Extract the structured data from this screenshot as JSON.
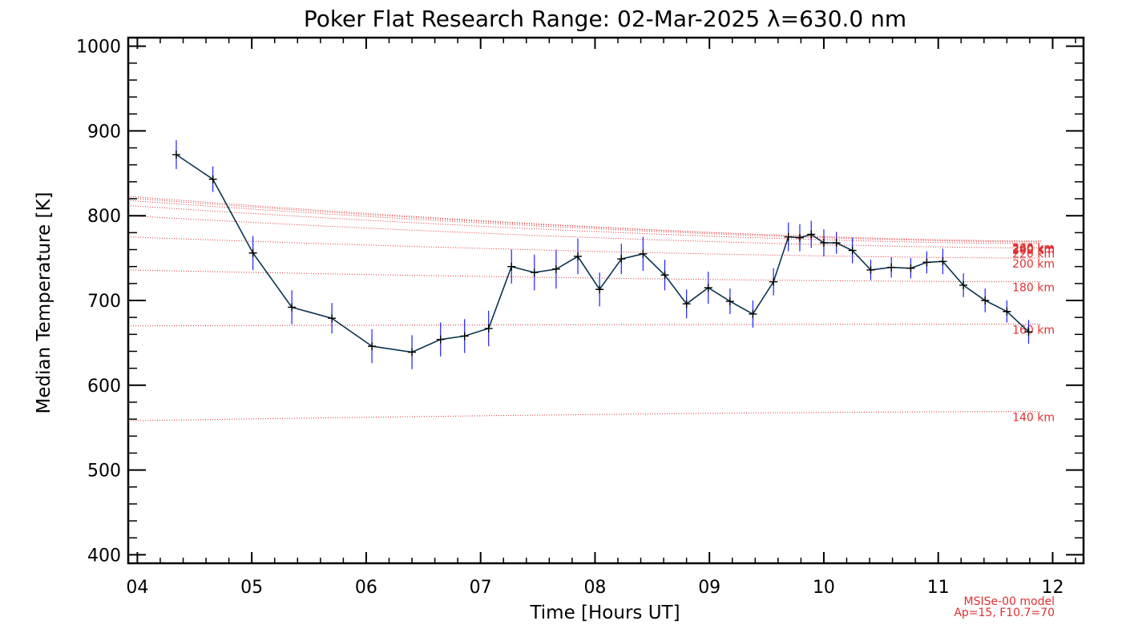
{
  "chart_data": {
    "type": "line",
    "title": "Poker Flat Research Range: 02-Mar-2025 λ=630.0 nm",
    "xlabel": "Time [Hours UT]",
    "ylabel": "Median Temperature [K]",
    "xlim": [
      3.92,
      12.27
    ],
    "ylim": [
      390,
      1010
    ],
    "xticks": [
      4,
      5,
      6,
      7,
      8,
      9,
      10,
      11,
      12
    ],
    "xtick_labels": [
      "04",
      "05",
      "06",
      "07",
      "08",
      "09",
      "10",
      "11",
      "12"
    ],
    "yticks": [
      400,
      500,
      600,
      700,
      800,
      900,
      1000
    ],
    "ytick_labels": [
      "400",
      "500",
      "600",
      "700",
      "800",
      "900",
      "1000"
    ],
    "measured": {
      "name": "Median temperature",
      "color": "#0a3550",
      "errorbar_color": "#2020ff",
      "points": [
        {
          "x": 4.34,
          "y": 872,
          "err": 17
        },
        {
          "x": 4.66,
          "y": 843,
          "err": 15
        },
        {
          "x": 5.01,
          "y": 756,
          "err": 20
        },
        {
          "x": 5.35,
          "y": 692,
          "err": 20
        },
        {
          "x": 5.7,
          "y": 679,
          "err": 18
        },
        {
          "x": 6.05,
          "y": 646,
          "err": 20
        },
        {
          "x": 6.4,
          "y": 639,
          "err": 20
        },
        {
          "x": 6.65,
          "y": 654,
          "err": 20
        },
        {
          "x": 6.86,
          "y": 658,
          "err": 20
        },
        {
          "x": 7.07,
          "y": 667,
          "err": 21
        },
        {
          "x": 7.27,
          "y": 740,
          "err": 20
        },
        {
          "x": 7.47,
          "y": 733,
          "err": 21
        },
        {
          "x": 7.66,
          "y": 737,
          "err": 23
        },
        {
          "x": 7.85,
          "y": 752,
          "err": 21
        },
        {
          "x": 8.04,
          "y": 713,
          "err": 20
        },
        {
          "x": 8.23,
          "y": 749,
          "err": 18
        },
        {
          "x": 8.42,
          "y": 755,
          "err": 20
        },
        {
          "x": 8.61,
          "y": 730,
          "err": 18
        },
        {
          "x": 8.8,
          "y": 696,
          "err": 17
        },
        {
          "x": 8.99,
          "y": 715,
          "err": 19
        },
        {
          "x": 9.18,
          "y": 699,
          "err": 15
        },
        {
          "x": 9.38,
          "y": 684,
          "err": 16
        },
        {
          "x": 9.56,
          "y": 722,
          "err": 16
        },
        {
          "x": 9.69,
          "y": 775,
          "err": 17
        },
        {
          "x": 9.79,
          "y": 774,
          "err": 16
        },
        {
          "x": 9.89,
          "y": 778,
          "err": 16
        },
        {
          "x": 10.0,
          "y": 768,
          "err": 16
        },
        {
          "x": 10.11,
          "y": 768,
          "err": 13
        },
        {
          "x": 10.25,
          "y": 759,
          "err": 15
        },
        {
          "x": 10.41,
          "y": 736,
          "err": 12
        },
        {
          "x": 10.59,
          "y": 739,
          "err": 12
        },
        {
          "x": 10.76,
          "y": 738,
          "err": 12
        },
        {
          "x": 10.9,
          "y": 745,
          "err": 13
        },
        {
          "x": 11.04,
          "y": 746,
          "err": 15
        },
        {
          "x": 11.22,
          "y": 718,
          "err": 14
        },
        {
          "x": 11.41,
          "y": 700,
          "err": 14
        },
        {
          "x": 11.6,
          "y": 687,
          "err": 13
        },
        {
          "x": 11.79,
          "y": 663,
          "err": 14
        }
      ]
    },
    "model": {
      "name": "MSISe-00 model",
      "params": "Ap=15, F10.7=70",
      "color": "#e03030",
      "x_range": [
        3.92,
        11.9
      ],
      "curves": [
        {
          "altitude": "140 km",
          "start": 558,
          "end": 569
        },
        {
          "altitude": "160 km",
          "start": 670,
          "end": 672
        },
        {
          "altitude": "180 km",
          "start": 736,
          "end": 722
        },
        {
          "altitude": "200 km",
          "start": 775,
          "end": 750
        },
        {
          "altitude": "220 km",
          "start": 800,
          "end": 762
        },
        {
          "altitude": "240 km",
          "start": 812,
          "end": 767
        },
        {
          "altitude": "260 km",
          "start": 818,
          "end": 769
        },
        {
          "altitude": "280 km",
          "start": 821,
          "end": 770
        },
        {
          "altitude": "300 km",
          "start": 823,
          "end": 770
        }
      ]
    }
  }
}
